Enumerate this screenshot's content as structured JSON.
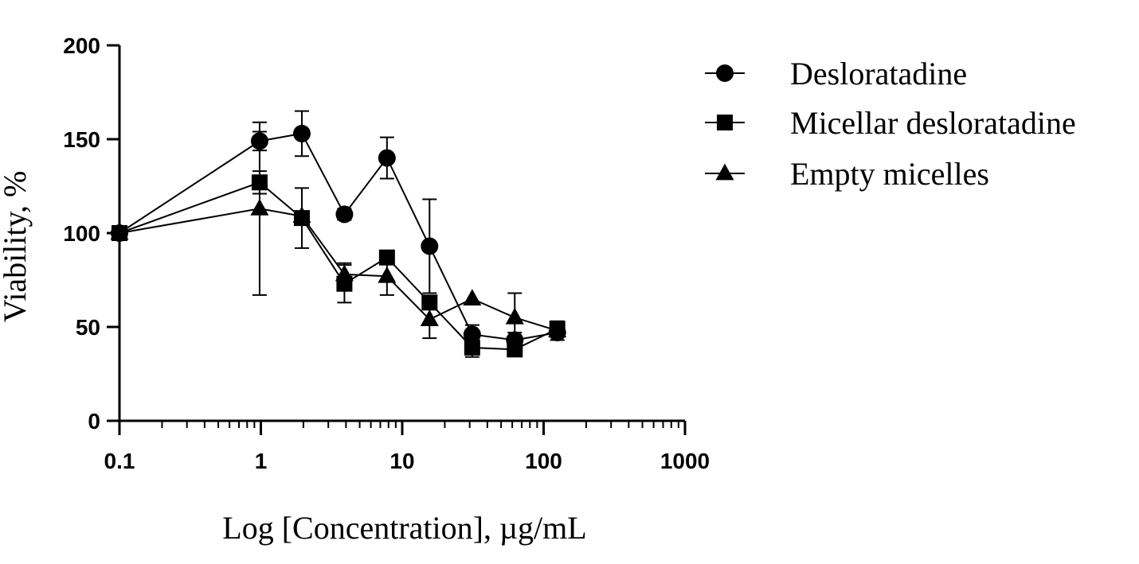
{
  "chart_data": {
    "type": "line",
    "title": "",
    "xlabel": "Log [Concentration], µg/mL",
    "ylabel": "Viability, %",
    "x_scale": "log",
    "xlim": [
      0.1,
      1000
    ],
    "ylim": [
      0,
      200
    ],
    "x_ticks": [
      0.1,
      1,
      10,
      100,
      1000
    ],
    "x_tick_labels": [
      "0.1",
      "1",
      "10",
      "100",
      "1000"
    ],
    "y_ticks": [
      0,
      50,
      100,
      150,
      200
    ],
    "y_tick_labels": [
      "0",
      "50",
      "100",
      "150",
      "200"
    ],
    "legend_position": "top-right",
    "grid": false,
    "series": [
      {
        "name": "Desloratadine",
        "marker": "circle",
        "color": "#000000",
        "x": [
          0.1,
          0.98,
          1.95,
          3.9,
          7.8,
          15.6,
          31.25,
          62.5,
          125
        ],
        "y": [
          100,
          149,
          153,
          110,
          140,
          93,
          46,
          43,
          47
        ],
        "err": [
          0,
          5,
          12,
          3,
          11,
          25,
          5,
          4,
          4
        ]
      },
      {
        "name": "Micellar desloratadine",
        "marker": "square",
        "color": "#000000",
        "x": [
          0.1,
          0.98,
          1.95,
          3.9,
          7.8,
          15.6,
          31.25,
          62.5,
          125
        ],
        "y": [
          100,
          127,
          108,
          73,
          87,
          63,
          39,
          38,
          49
        ],
        "err": [
          0,
          6,
          16,
          10,
          0,
          0,
          5,
          0,
          4
        ]
      },
      {
        "name": "Empty micelles",
        "marker": "triangle",
        "color": "#000000",
        "x": [
          0.1,
          0.98,
          1.95,
          3.9,
          7.8,
          15.6,
          31.25,
          62.5,
          125
        ],
        "y": [
          100,
          113,
          109,
          78,
          77,
          54,
          65,
          55,
          48
        ],
        "err": [
          0,
          46,
          0,
          6,
          10,
          10,
          0,
          13,
          5
        ]
      }
    ]
  }
}
